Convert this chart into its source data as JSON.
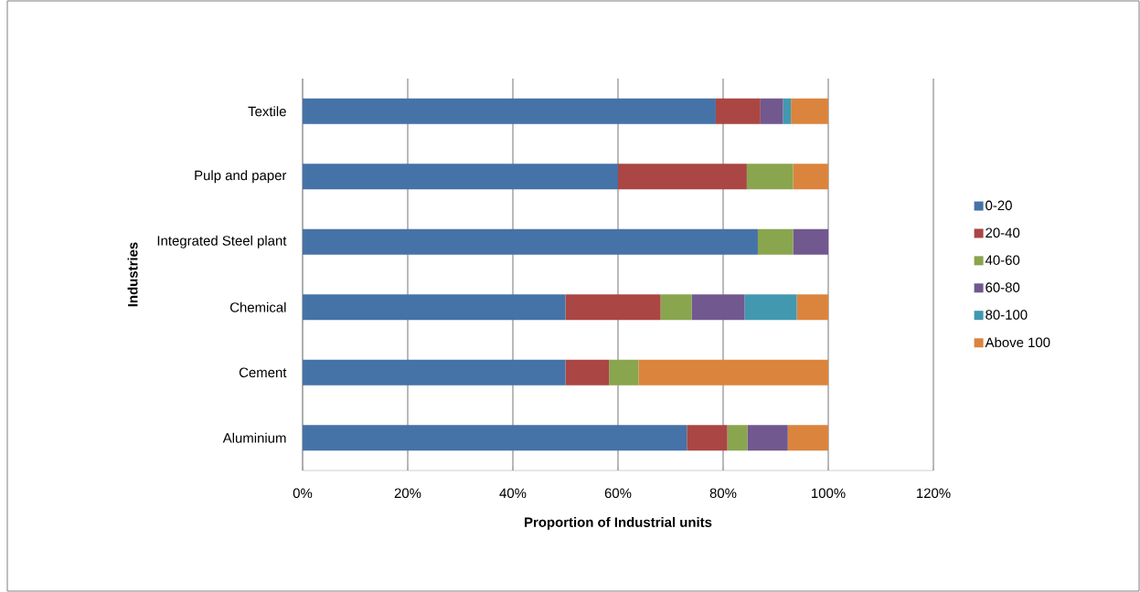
{
  "chart_data": {
    "type": "bar",
    "orientation": "horizontal",
    "stacked": true,
    "xlabel": "Proportion of Industrial units",
    "ylabel": "Industries",
    "categories": [
      "Textile",
      "Pulp and paper",
      "Integrated Steel plant",
      "Chemical",
      "Cement",
      "Aluminium"
    ],
    "series": [
      {
        "name": "0-20",
        "color": "#4572a7",
        "values": [
          78.6,
          60,
          86.6,
          50,
          50,
          73.1
        ]
      },
      {
        "name": "20-40",
        "color": "#aa4643",
        "values": [
          8.5,
          24.5,
          0,
          18.1,
          8.3,
          7.7
        ]
      },
      {
        "name": "40-60",
        "color": "#89a54e",
        "values": [
          0,
          8.8,
          6.7,
          5.9,
          5.6,
          3.8
        ]
      },
      {
        "name": "60-80",
        "color": "#71588f",
        "values": [
          4.3,
          0,
          6.7,
          10.1,
          0,
          7.7
        ]
      },
      {
        "name": "80-100",
        "color": "#4198af",
        "values": [
          1.5,
          0,
          0,
          9.9,
          0,
          0
        ]
      },
      {
        "name": "Above 100",
        "color": "#db843d",
        "values": [
          7.1,
          6.7,
          0,
          6.0,
          36.1,
          7.7
        ]
      }
    ],
    "xlim": [
      0,
      120
    ],
    "xticks": [
      {
        "value": 0,
        "label": "0%"
      },
      {
        "value": 20,
        "label": "20%"
      },
      {
        "value": 40,
        "label": "40%"
      },
      {
        "value": 60,
        "label": "60%"
      },
      {
        "value": 80,
        "label": "80%"
      },
      {
        "value": 100,
        "label": "100%"
      },
      {
        "value": 120,
        "label": "120%"
      }
    ],
    "grid": "x",
    "legend": "right"
  }
}
